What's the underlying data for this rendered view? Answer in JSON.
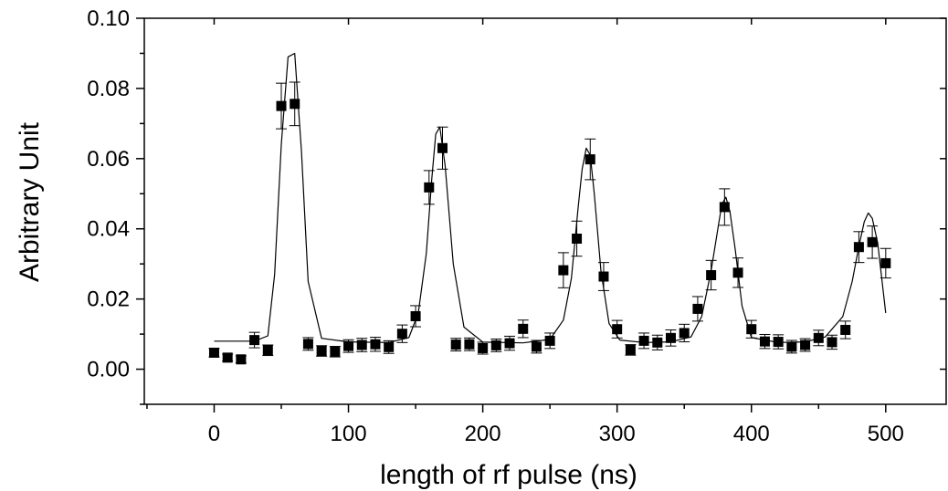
{
  "chart_data": {
    "type": "scatter",
    "xlabel": "length of rf pulse (ns)",
    "ylabel": "Arbitrary Unit",
    "xlim": [
      -52,
      545
    ],
    "ylim": [
      -0.01,
      0.1
    ],
    "x_ticks": [
      0,
      100,
      200,
      300,
      400,
      500
    ],
    "x_tick_labels": [
      "0",
      "100",
      "200",
      "300",
      "400",
      "500"
    ],
    "y_ticks": [
      0.0,
      0.02,
      0.04,
      0.06,
      0.08,
      0.1
    ],
    "y_tick_labels": [
      "0.00",
      "0.02",
      "0.04",
      "0.06",
      "0.08",
      "0.10"
    ],
    "grid": false,
    "colors": {
      "marker": "#000000",
      "line": "#000000"
    },
    "series": [
      {
        "kind": "points-with-error-bars",
        "x": [
          0,
          10,
          20,
          30,
          40,
          50,
          60,
          70,
          80,
          90,
          100,
          110,
          120,
          130,
          140,
          150,
          160,
          170,
          180,
          190,
          200,
          210,
          220,
          230,
          240,
          250,
          260,
          270,
          280,
          290,
          300,
          310,
          320,
          330,
          340,
          350,
          360,
          370,
          380,
          390,
          400,
          410,
          420,
          430,
          440,
          450,
          460,
          470,
          480,
          490,
          500
        ],
        "y": [
          0.0047,
          0.0033,
          0.0028,
          0.0083,
          0.0054,
          0.075,
          0.0756,
          0.0072,
          0.0052,
          0.005,
          0.0066,
          0.0069,
          0.0071,
          0.0063,
          0.0101,
          0.0151,
          0.0518,
          0.063,
          0.007,
          0.0071,
          0.006,
          0.0068,
          0.0074,
          0.0115,
          0.0064,
          0.0081,
          0.0282,
          0.0372,
          0.0598,
          0.0264,
          0.0114,
          0.0055,
          0.0081,
          0.0076,
          0.0089,
          0.0103,
          0.0172,
          0.0268,
          0.0462,
          0.0275,
          0.0114,
          0.0079,
          0.0078,
          0.0064,
          0.0069,
          0.0089,
          0.0077,
          0.0112,
          0.0348,
          0.0362,
          0.0302
        ],
        "yerr": [
          0.0012,
          0.001,
          0.001,
          0.0022,
          0.0015,
          0.0065,
          0.0062,
          0.0018,
          0.0015,
          0.0015,
          0.0018,
          0.0019,
          0.002,
          0.0018,
          0.0025,
          0.003,
          0.0048,
          0.006,
          0.0018,
          0.0018,
          0.0017,
          0.0018,
          0.002,
          0.0025,
          0.0018,
          0.0022,
          0.005,
          0.005,
          0.0058,
          0.004,
          0.0025,
          0.0015,
          0.0022,
          0.0021,
          0.0023,
          0.0025,
          0.0035,
          0.0042,
          0.0052,
          0.0042,
          0.0025,
          0.002,
          0.002,
          0.0018,
          0.0018,
          0.0022,
          0.002,
          0.0025,
          0.0044,
          0.0046,
          0.0042
        ]
      },
      {
        "kind": "fit-line",
        "x": [
          0,
          30,
          40,
          45,
          50,
          55,
          60,
          65,
          70,
          80,
          100,
          130,
          145,
          152,
          158,
          162,
          165,
          168,
          172,
          178,
          186,
          200,
          230,
          250,
          260,
          266,
          271,
          274,
          277,
          280,
          283,
          288,
          294,
          302,
          320,
          340,
          355,
          363,
          370,
          375,
          378,
          381,
          384,
          388,
          393,
          400,
          420,
          440,
          455,
          468,
          475,
          480,
          484,
          487,
          490,
          494,
          497,
          500
        ],
        "y": [
          0.008,
          0.008,
          0.0095,
          0.027,
          0.064,
          0.089,
          0.09,
          0.062,
          0.025,
          0.0088,
          0.0078,
          0.0076,
          0.009,
          0.016,
          0.033,
          0.054,
          0.067,
          0.069,
          0.058,
          0.03,
          0.012,
          0.0077,
          0.0075,
          0.0085,
          0.014,
          0.026,
          0.046,
          0.057,
          0.063,
          0.061,
          0.05,
          0.028,
          0.013,
          0.0083,
          0.0076,
          0.0078,
          0.0092,
          0.015,
          0.028,
          0.04,
          0.047,
          0.049,
          0.045,
          0.034,
          0.018,
          0.009,
          0.0076,
          0.0078,
          0.0092,
          0.015,
          0.025,
          0.035,
          0.042,
          0.0445,
          0.043,
          0.036,
          0.026,
          0.016
        ]
      }
    ]
  }
}
